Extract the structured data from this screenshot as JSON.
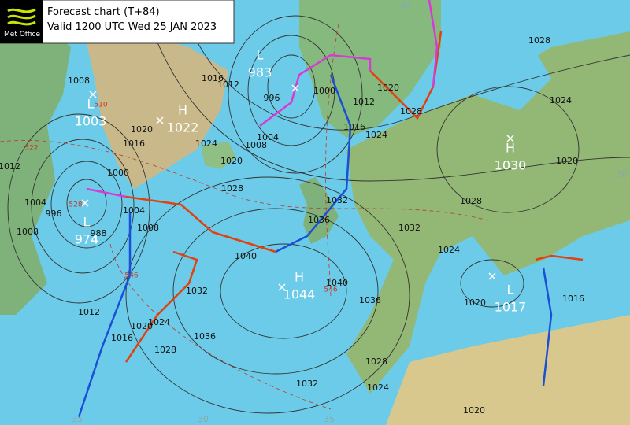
{
  "header": {
    "logo": "Met Office",
    "title": "Forecast chart (T+84)",
    "valid": "Valid 1200 UTC Wed 25 JAN 2023"
  },
  "centers": [
    {
      "type": "L",
      "value": 983
    },
    {
      "type": "L",
      "value": 1003
    },
    {
      "type": "H",
      "value": 1022
    },
    {
      "type": "L",
      "value": 974
    },
    {
      "type": "H",
      "value": 1044
    },
    {
      "type": "H",
      "value": 1030
    },
    {
      "type": "L",
      "value": 1017
    }
  ],
  "isobar_labels": [
    1008,
    1012,
    1016,
    1024,
    1020,
    1028,
    996,
    1000,
    1004,
    1008,
    1012,
    1016,
    1020,
    1024,
    1028,
    1032,
    1036,
    1040,
    1032,
    1024,
    1020,
    1016,
    1020,
    1024,
    1028,
    1028,
    1040,
    1036,
    1028,
    1024,
    1032,
    1020,
    1036,
    1032,
    1028,
    1024,
    1020,
    1016,
    1012,
    1008,
    1004,
    1000,
    996,
    1004,
    1008,
    1012,
    988,
    1016,
    1020
  ],
  "thickness_labels": [
    522,
    510,
    528,
    546,
    546
  ],
  "edge_labels": [
    45,
    35,
    30,
    35,
    30
  ]
}
